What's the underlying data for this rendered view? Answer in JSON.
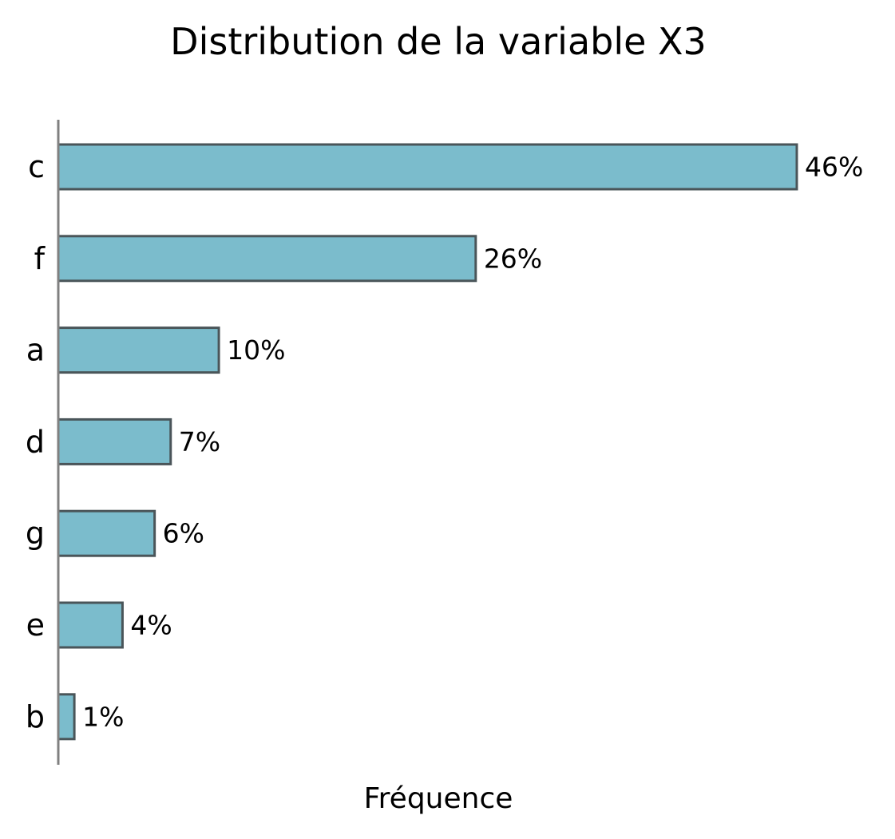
{
  "chart_data": {
    "type": "bar",
    "orientation": "horizontal",
    "title": "Distribution de la variable X3",
    "xlabel": "Fréquence",
    "ylabel": "",
    "categories": [
      "c",
      "f",
      "a",
      "d",
      "g",
      "e",
      "b"
    ],
    "values": [
      46,
      26,
      10,
      7,
      6,
      4,
      1
    ],
    "value_labels": [
      "46%",
      "26%",
      "10%",
      "7%",
      "6%",
      "4%",
      "1%"
    ],
    "grid": false,
    "legend": "none",
    "bar_color": "#7bbccc",
    "bar_edge_color": "#4a5559",
    "axis_color": "#808080"
  }
}
